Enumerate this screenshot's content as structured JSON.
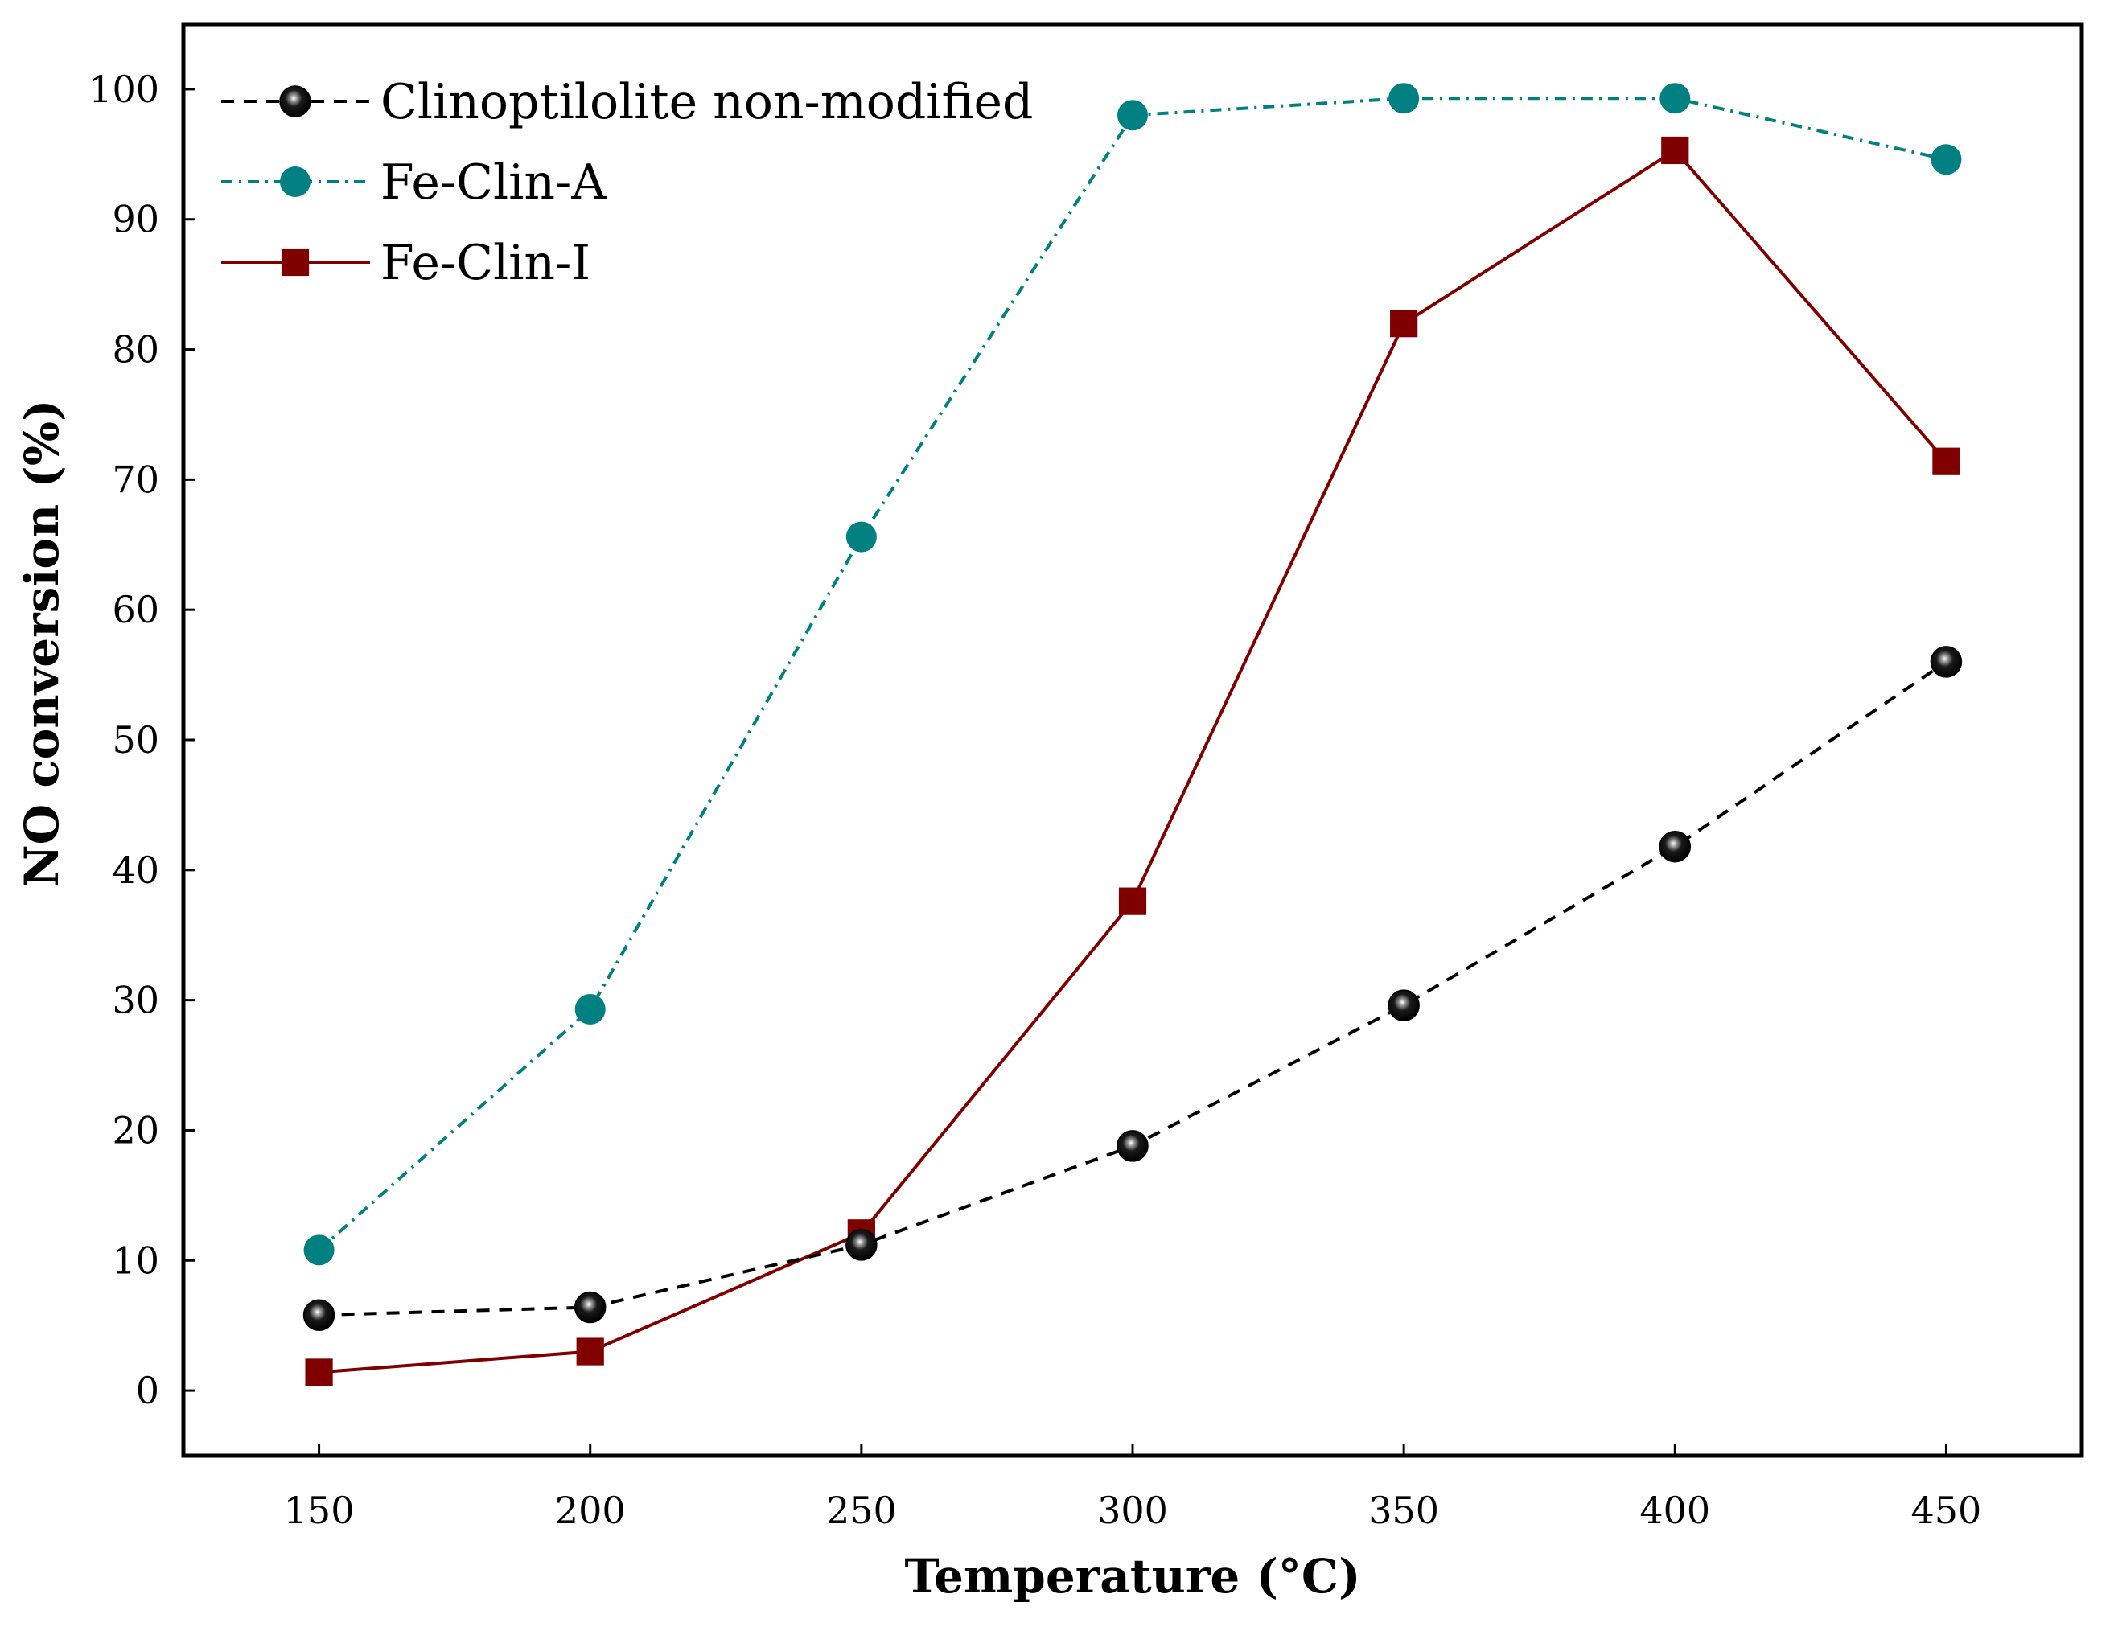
{
  "chart_data": {
    "type": "line",
    "title": "",
    "xlabel": "Temperature (°C)",
    "ylabel": "NO conversion (%)",
    "x": [
      150,
      200,
      250,
      300,
      350,
      400,
      450
    ],
    "xlim": [
      125,
      475
    ],
    "ylim": [
      -5,
      105
    ],
    "xticks": [
      "150",
      "200",
      "250",
      "300",
      "350",
      "400",
      "450"
    ],
    "yticks": [
      "0",
      "10",
      "20",
      "30",
      "40",
      "50",
      "60",
      "70",
      "80",
      "90",
      "100"
    ],
    "grid": false,
    "legend_position": "top-left",
    "series": [
      {
        "name": "Clinoptilolite non-modified",
        "values": [
          5.8,
          6.4,
          11.2,
          18.8,
          29.6,
          41.8,
          56.0
        ],
        "color": "#000000",
        "line_style": "dashed",
        "marker": "sphere"
      },
      {
        "name": "Fe-Clin-A",
        "values": [
          10.8,
          29.3,
          65.6,
          98.0,
          99.3,
          99.3,
          94.6
        ],
        "color": "#008080",
        "line_style": "dash-dot",
        "marker": "circle"
      },
      {
        "name": "Fe-Clin-I",
        "values": [
          1.4,
          3.0,
          12.1,
          37.6,
          82.0,
          95.3,
          71.4
        ],
        "color": "#800000",
        "line_style": "solid",
        "marker": "square"
      }
    ]
  }
}
